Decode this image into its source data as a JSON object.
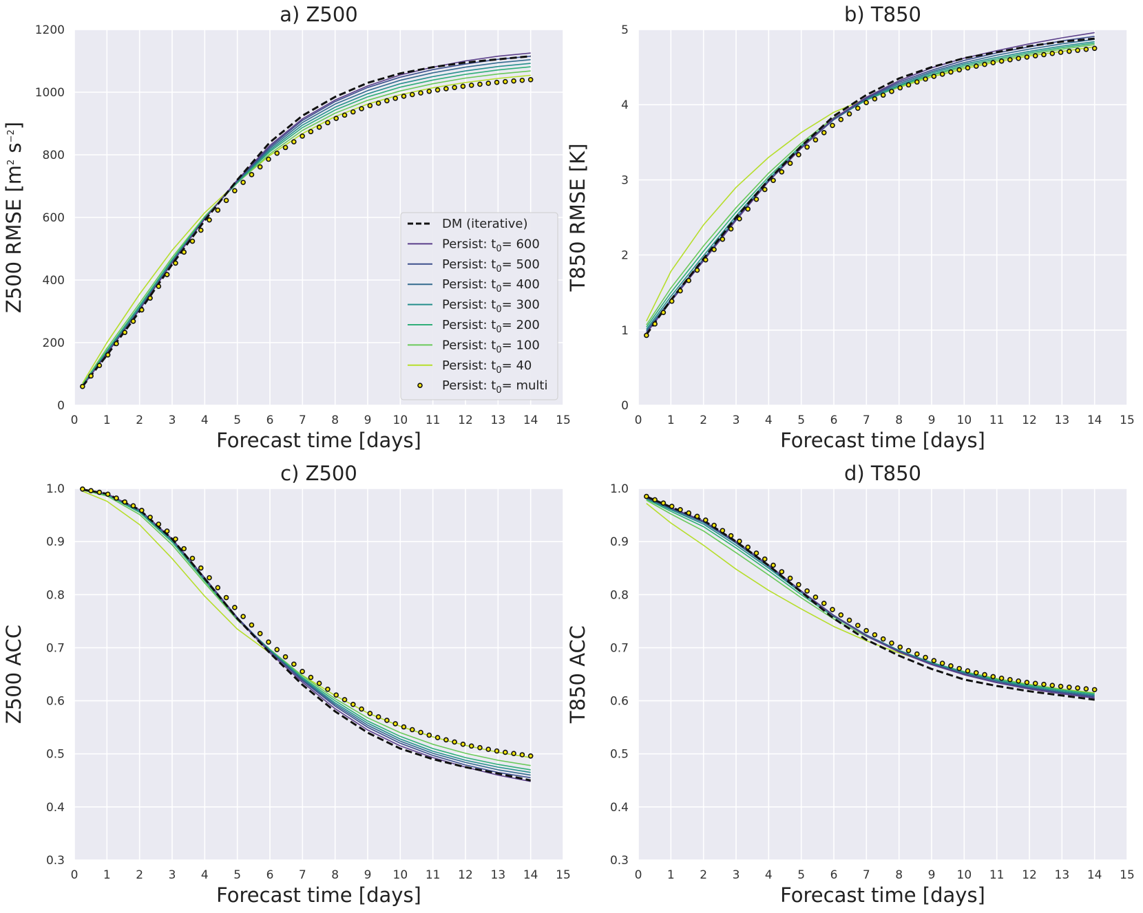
{
  "chart_data": [
    {
      "type": "line",
      "panel": "a",
      "title": "a) Z500",
      "xlabel": "Forecast time [days]",
      "ylabel": "Z500 RMSE [m",
      "ylabel_sup1": "2",
      "ylabel_mid": " s",
      "ylabel_sup2": "−2",
      "ylabel_end": "]",
      "xlim": [
        0,
        15
      ],
      "ylim": [
        0,
        1200
      ],
      "xticks": [
        "0",
        "1",
        "2",
        "3",
        "4",
        "5",
        "6",
        "7",
        "8",
        "9",
        "10",
        "11",
        "12",
        "13",
        "14",
        "15"
      ],
      "yticks": [
        "0",
        "200",
        "400",
        "600",
        "800",
        "1000",
        "1200"
      ],
      "x": [
        0.25,
        1,
        2,
        3,
        4,
        5,
        6,
        7,
        8,
        9,
        10,
        11,
        12,
        13,
        14
      ],
      "series": [
        {
          "name": "DM (iterative)",
          "values": [
            60,
            160,
            300,
            450,
            590,
            720,
            840,
            925,
            985,
            1030,
            1060,
            1080,
            1095,
            1105,
            1115
          ]
        },
        {
          "name": "Persist: t0= 600",
          "values": [
            60,
            165,
            305,
            455,
            595,
            720,
            830,
            915,
            975,
            1020,
            1055,
            1080,
            1100,
            1115,
            1125
          ]
        },
        {
          "name": "Persist: t0= 500",
          "values": [
            60,
            165,
            305,
            455,
            595,
            718,
            825,
            910,
            970,
            1015,
            1048,
            1072,
            1090,
            1105,
            1115
          ]
        },
        {
          "name": "Persist: t0= 400",
          "values": [
            61,
            167,
            308,
            457,
            596,
            716,
            820,
            903,
            962,
            1005,
            1038,
            1062,
            1080,
            1094,
            1104
          ]
        },
        {
          "name": "Persist: t0= 300",
          "values": [
            62,
            170,
            312,
            460,
            598,
            714,
            815,
            895,
            952,
            995,
            1027,
            1050,
            1068,
            1082,
            1092
          ]
        },
        {
          "name": "Persist: t0= 200",
          "values": [
            64,
            175,
            318,
            465,
            600,
            712,
            810,
            887,
            943,
            985,
            1016,
            1039,
            1057,
            1071,
            1081
          ]
        },
        {
          "name": "Persist: t0= 100",
          "values": [
            66,
            182,
            326,
            472,
            603,
            710,
            803,
            878,
            933,
            974,
            1004,
            1027,
            1045,
            1058,
            1068
          ]
        },
        {
          "name": "Persist: t0= 40",
          "values": [
            70,
            200,
            355,
            495,
            615,
            712,
            798,
            868,
            922,
            962,
            992,
            1014,
            1031,
            1044,
            1054
          ]
        },
        {
          "name": "Persist: t0= multi",
          "values": [
            60,
            157,
            295,
            440,
            575,
            695,
            790,
            860,
            915,
            955,
            985,
            1005,
            1020,
            1032,
            1040
          ]
        }
      ]
    },
    {
      "type": "line",
      "panel": "b",
      "title": "b) T850",
      "xlabel": "Forecast time [days]",
      "ylabel": "T850 RMSE [K]",
      "xlim": [
        0,
        15
      ],
      "ylim": [
        0,
        5
      ],
      "xticks": [
        "0",
        "1",
        "2",
        "3",
        "4",
        "5",
        "6",
        "7",
        "8",
        "9",
        "10",
        "11",
        "12",
        "13",
        "14",
        "15"
      ],
      "yticks": [
        "0",
        "1",
        "2",
        "3",
        "4",
        "5"
      ],
      "x": [
        0.25,
        1,
        2,
        3,
        4,
        5,
        6,
        7,
        8,
        9,
        10,
        11,
        12,
        13,
        14
      ],
      "series": [
        {
          "name": "DM (iterative)",
          "values": [
            0.94,
            1.4,
            1.95,
            2.5,
            3.0,
            3.45,
            3.85,
            4.13,
            4.35,
            4.5,
            4.62,
            4.7,
            4.78,
            4.84,
            4.88
          ]
        },
        {
          "name": "Persist: t0= 600",
          "values": [
            0.96,
            1.38,
            1.92,
            2.46,
            2.98,
            3.42,
            3.82,
            4.1,
            4.32,
            4.49,
            4.62,
            4.72,
            4.81,
            4.89,
            4.96
          ]
        },
        {
          "name": "Persist: t0= 500",
          "values": [
            0.97,
            1.39,
            1.93,
            2.47,
            2.98,
            3.42,
            3.81,
            4.09,
            4.3,
            4.46,
            4.59,
            4.69,
            4.77,
            4.85,
            4.91
          ]
        },
        {
          "name": "Persist: t0= 400",
          "values": [
            0.99,
            1.41,
            1.95,
            2.49,
            2.99,
            3.43,
            3.8,
            4.08,
            4.28,
            4.44,
            4.56,
            4.66,
            4.74,
            4.81,
            4.87
          ]
        },
        {
          "name": "Persist: t0= 300",
          "values": [
            1.01,
            1.45,
            1.99,
            2.52,
            3.01,
            3.44,
            3.8,
            4.07,
            4.26,
            4.42,
            4.54,
            4.63,
            4.71,
            4.78,
            4.84
          ]
        },
        {
          "name": "Persist: t0= 200",
          "values": [
            1.04,
            1.5,
            2.05,
            2.57,
            3.04,
            3.46,
            3.81,
            4.06,
            4.25,
            4.4,
            4.52,
            4.61,
            4.69,
            4.76,
            4.82
          ]
        },
        {
          "name": "Persist: t0= 100",
          "values": [
            1.07,
            1.56,
            2.12,
            2.63,
            3.09,
            3.49,
            3.83,
            4.06,
            4.24,
            4.39,
            4.5,
            4.59,
            4.67,
            4.74,
            4.8
          ]
        },
        {
          "name": "Persist: t0= 40",
          "values": [
            1.12,
            1.78,
            2.4,
            2.9,
            3.3,
            3.63,
            3.9,
            4.08,
            4.23,
            4.37,
            4.48,
            4.57,
            4.65,
            4.71,
            4.77
          ]
        },
        {
          "name": "Persist: t0= multi",
          "values": [
            0.93,
            1.37,
            1.9,
            2.43,
            2.93,
            3.37,
            3.74,
            4.03,
            4.22,
            4.37,
            4.48,
            4.57,
            4.64,
            4.7,
            4.75
          ]
        }
      ]
    },
    {
      "type": "line",
      "panel": "c",
      "title": "c) Z500",
      "xlabel": "Forecast time [days]",
      "ylabel": "Z500 ACC",
      "xlim": [
        0,
        15
      ],
      "ylim": [
        0.3,
        1.0
      ],
      "xticks": [
        "0",
        "1",
        "2",
        "3",
        "4",
        "5",
        "6",
        "7",
        "8",
        "9",
        "10",
        "11",
        "12",
        "13",
        "14",
        "15"
      ],
      "yticks": [
        "0.3",
        "0.4",
        "0.5",
        "0.6",
        "0.7",
        "0.8",
        "0.9",
        "1.0"
      ],
      "x": [
        0.25,
        1,
        2,
        3,
        4,
        5,
        6,
        7,
        8,
        9,
        10,
        11,
        12,
        13,
        14
      ],
      "series": [
        {
          "name": "DM (iterative)",
          "values": [
            0.998,
            0.99,
            0.96,
            0.905,
            0.83,
            0.755,
            0.69,
            0.63,
            0.58,
            0.54,
            0.51,
            0.49,
            0.475,
            0.463,
            0.45
          ]
        },
        {
          "name": "Persist: t0= 600",
          "values": [
            0.998,
            0.99,
            0.96,
            0.905,
            0.83,
            0.755,
            0.69,
            0.635,
            0.585,
            0.545,
            0.515,
            0.493,
            0.475,
            0.46,
            0.448
          ]
        },
        {
          "name": "Persist: t0= 500",
          "values": [
            0.998,
            0.99,
            0.96,
            0.905,
            0.832,
            0.757,
            0.693,
            0.638,
            0.59,
            0.55,
            0.52,
            0.497,
            0.479,
            0.465,
            0.455
          ]
        },
        {
          "name": "Persist: t0= 400",
          "values": [
            0.998,
            0.99,
            0.959,
            0.904,
            0.831,
            0.757,
            0.694,
            0.64,
            0.593,
            0.554,
            0.524,
            0.501,
            0.484,
            0.47,
            0.46
          ]
        },
        {
          "name": "Persist: t0= 300",
          "values": [
            0.998,
            0.989,
            0.957,
            0.902,
            0.829,
            0.756,
            0.695,
            0.642,
            0.596,
            0.558,
            0.528,
            0.505,
            0.488,
            0.475,
            0.465
          ]
        },
        {
          "name": "Persist: t0= 200",
          "values": [
            0.998,
            0.988,
            0.955,
            0.899,
            0.826,
            0.754,
            0.696,
            0.644,
            0.6,
            0.562,
            0.533,
            0.51,
            0.493,
            0.48,
            0.47
          ]
        },
        {
          "name": "Persist: t0= 100",
          "values": [
            0.997,
            0.986,
            0.951,
            0.894,
            0.822,
            0.752,
            0.697,
            0.647,
            0.604,
            0.568,
            0.54,
            0.518,
            0.501,
            0.488,
            0.478
          ]
        },
        {
          "name": "Persist: t0= 40",
          "values": [
            0.995,
            0.976,
            0.932,
            0.868,
            0.797,
            0.735,
            0.69,
            0.648,
            0.61,
            0.577,
            0.552,
            0.532,
            0.516,
            0.503,
            0.493
          ]
        },
        {
          "name": "Persist: t0= multi",
          "values": [
            0.999,
            0.99,
            0.962,
            0.912,
            0.842,
            0.77,
            0.708,
            0.655,
            0.612,
            0.578,
            0.553,
            0.533,
            0.517,
            0.505,
            0.496
          ]
        }
      ]
    },
    {
      "type": "line",
      "panel": "d",
      "title": "d) T850",
      "xlabel": "Forecast time [days]",
      "ylabel": "T850 ACC",
      "xlim": [
        0,
        15
      ],
      "ylim": [
        0.3,
        1.0
      ],
      "xticks": [
        "0",
        "1",
        "2",
        "3",
        "4",
        "5",
        "6",
        "7",
        "8",
        "9",
        "10",
        "11",
        "12",
        "13",
        "14",
        "15"
      ],
      "yticks": [
        "0.3",
        "0.4",
        "0.5",
        "0.6",
        "0.7",
        "0.8",
        "0.9",
        "1.0"
      ],
      "x": [
        0.25,
        1,
        2,
        3,
        4,
        5,
        6,
        7,
        8,
        9,
        10,
        11,
        12,
        13,
        14
      ],
      "series": [
        {
          "name": "DM (iterative)",
          "values": [
            0.985,
            0.965,
            0.94,
            0.9,
            0.855,
            0.805,
            0.755,
            0.715,
            0.685,
            0.66,
            0.64,
            0.628,
            0.618,
            0.61,
            0.602
          ]
        },
        {
          "name": "Persist: t0= 600",
          "values": [
            0.984,
            0.964,
            0.939,
            0.9,
            0.856,
            0.807,
            0.76,
            0.722,
            0.692,
            0.668,
            0.649,
            0.634,
            0.622,
            0.613,
            0.605
          ]
        },
        {
          "name": "Persist: t0= 500",
          "values": [
            0.983,
            0.963,
            0.938,
            0.899,
            0.855,
            0.807,
            0.761,
            0.723,
            0.693,
            0.669,
            0.65,
            0.635,
            0.624,
            0.615,
            0.607
          ]
        },
        {
          "name": "Persist: t0= 400",
          "values": [
            0.982,
            0.962,
            0.936,
            0.897,
            0.853,
            0.806,
            0.761,
            0.724,
            0.694,
            0.67,
            0.652,
            0.637,
            0.625,
            0.616,
            0.609
          ]
        },
        {
          "name": "Persist: t0= 300",
          "values": [
            0.981,
            0.96,
            0.933,
            0.893,
            0.85,
            0.804,
            0.76,
            0.724,
            0.695,
            0.671,
            0.653,
            0.638,
            0.627,
            0.618,
            0.611
          ]
        },
        {
          "name": "Persist: t0= 200",
          "values": [
            0.98,
            0.957,
            0.928,
            0.888,
            0.845,
            0.8,
            0.758,
            0.723,
            0.695,
            0.672,
            0.654,
            0.64,
            0.629,
            0.62,
            0.613
          ]
        },
        {
          "name": "Persist: t0= 100",
          "values": [
            0.978,
            0.952,
            0.92,
            0.879,
            0.837,
            0.794,
            0.754,
            0.721,
            0.694,
            0.672,
            0.655,
            0.641,
            0.63,
            0.621,
            0.614
          ]
        },
        {
          "name": "Persist: t0= 40",
          "values": [
            0.972,
            0.935,
            0.893,
            0.848,
            0.808,
            0.773,
            0.74,
            0.713,
            0.69,
            0.671,
            0.655,
            0.642,
            0.631,
            0.622,
            0.615
          ]
        },
        {
          "name": "Persist: t0= multi",
          "values": [
            0.985,
            0.967,
            0.943,
            0.905,
            0.862,
            0.815,
            0.77,
            0.732,
            0.702,
            0.677,
            0.658,
            0.644,
            0.634,
            0.627,
            0.621
          ]
        }
      ]
    }
  ],
  "legend": {
    "items": [
      {
        "text": "DM (iterative)",
        "kind": "dashed"
      },
      {
        "text": "Persist: t",
        "sub": "0",
        "after": "= 600"
      },
      {
        "text": "Persist: t",
        "sub": "0",
        "after": "= 500"
      },
      {
        "text": "Persist: t",
        "sub": "0",
        "after": "= 400"
      },
      {
        "text": "Persist: t",
        "sub": "0",
        "after": "= 300"
      },
      {
        "text": "Persist: t",
        "sub": "0",
        "after": "= 200"
      },
      {
        "text": "Persist: t",
        "sub": "0",
        "after": "= 100"
      },
      {
        "text": "Persist: t",
        "sub": "0",
        "after": "= 40"
      },
      {
        "text": "Persist: t",
        "sub": "0",
        "after": "= multi",
        "kind": "markers"
      }
    ]
  },
  "colors": {
    "plot_bg": "#eaeaf2",
    "grid": "#ffffff",
    "dm": "#111111",
    "persist": [
      "#5b3f8a",
      "#3d4f8c",
      "#336a8e",
      "#268f8c",
      "#2fae78",
      "#6ac95a",
      "#b6de2b"
    ],
    "marker_face": "#f5e50d",
    "marker_edge": "#111111"
  }
}
